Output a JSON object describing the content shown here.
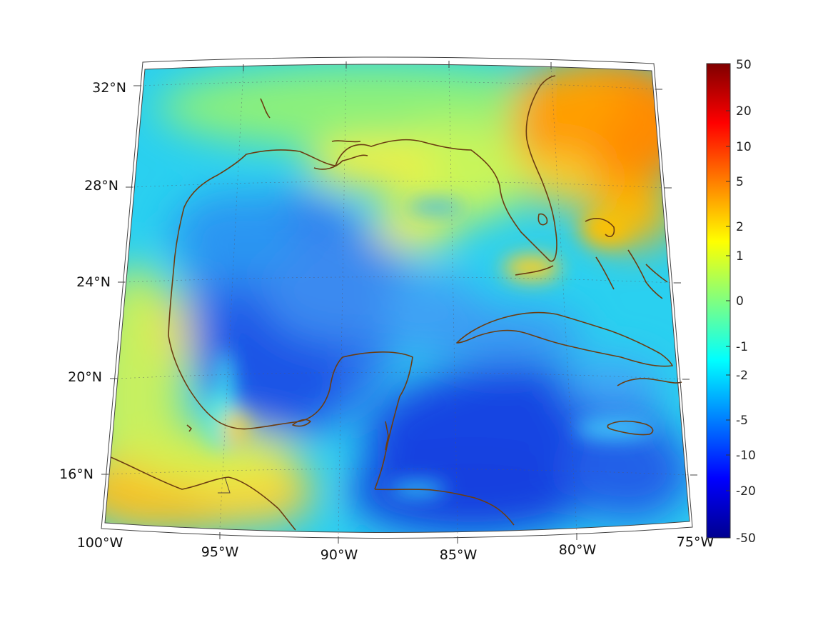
{
  "map": {
    "lon_labels": [
      "100°W",
      "95°W",
      "90°W",
      "85°W",
      "80°W",
      "75°W"
    ],
    "lat_labels": [
      "32°N",
      "28°N",
      "24°N",
      "20°N",
      "16°N"
    ],
    "extent": {
      "lon": [
        -100,
        -75
      ],
      "lat": [
        14,
        33
      ]
    }
  },
  "colorbar": {
    "tick_labels": [
      "50",
      "20",
      "10",
      "5",
      "2",
      "1",
      "0",
      "-1",
      "-2",
      "-5",
      "-10",
      "-20",
      "-50"
    ],
    "colors": [
      "#00008f",
      "#0000ff",
      "#0080ff",
      "#00ffff",
      "#80ff80",
      "#ffff00",
      "#ff8000",
      "#ff0000",
      "#800000"
    ]
  },
  "colors": {
    "coastline": "#6b3d12",
    "gulf_deep": "#1f5ae8",
    "caribbean": "#1546e0",
    "land_south": "#ffb000",
    "atlantic_ne": "#ff7a00"
  }
}
